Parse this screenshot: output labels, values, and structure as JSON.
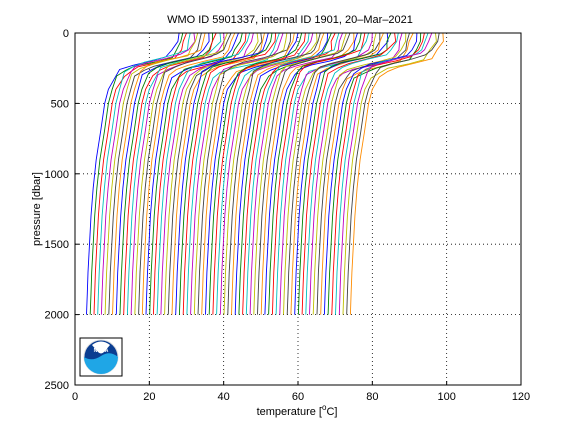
{
  "chart_data": {
    "type": "line",
    "title": "WMO ID 5901337, internal ID 1901, 20–Mar–2021",
    "xlabel_main": "temperature [",
    "xlabel_sup": "o",
    "xlabel_end": "C]",
    "ylabel": "pressure [dbar]",
    "xlim": [
      0,
      120
    ],
    "ylim": [
      0,
      2500
    ],
    "y_reversed": true,
    "grid": true,
    "grid_style": "dotted",
    "x_ticks": [
      "0",
      "20",
      "40",
      "60",
      "80",
      "100",
      "120"
    ],
    "y_ticks": [
      "0",
      "500",
      "1000",
      "1500",
      "2000",
      "2500"
    ],
    "profiles": {
      "count": 72,
      "offset_step_degC": 1,
      "deep_start_temp_at_2000dbar": 3.1,
      "surface_start_temp": 28,
      "max_pressure": 2000,
      "colors": [
        "#0000ff",
        "#008000",
        "#ff0000",
        "#00bfbf",
        "#bf00bf",
        "#bfbf00",
        "#404040",
        "#ff8c00"
      ]
    },
    "logo": "noaa-logo"
  }
}
